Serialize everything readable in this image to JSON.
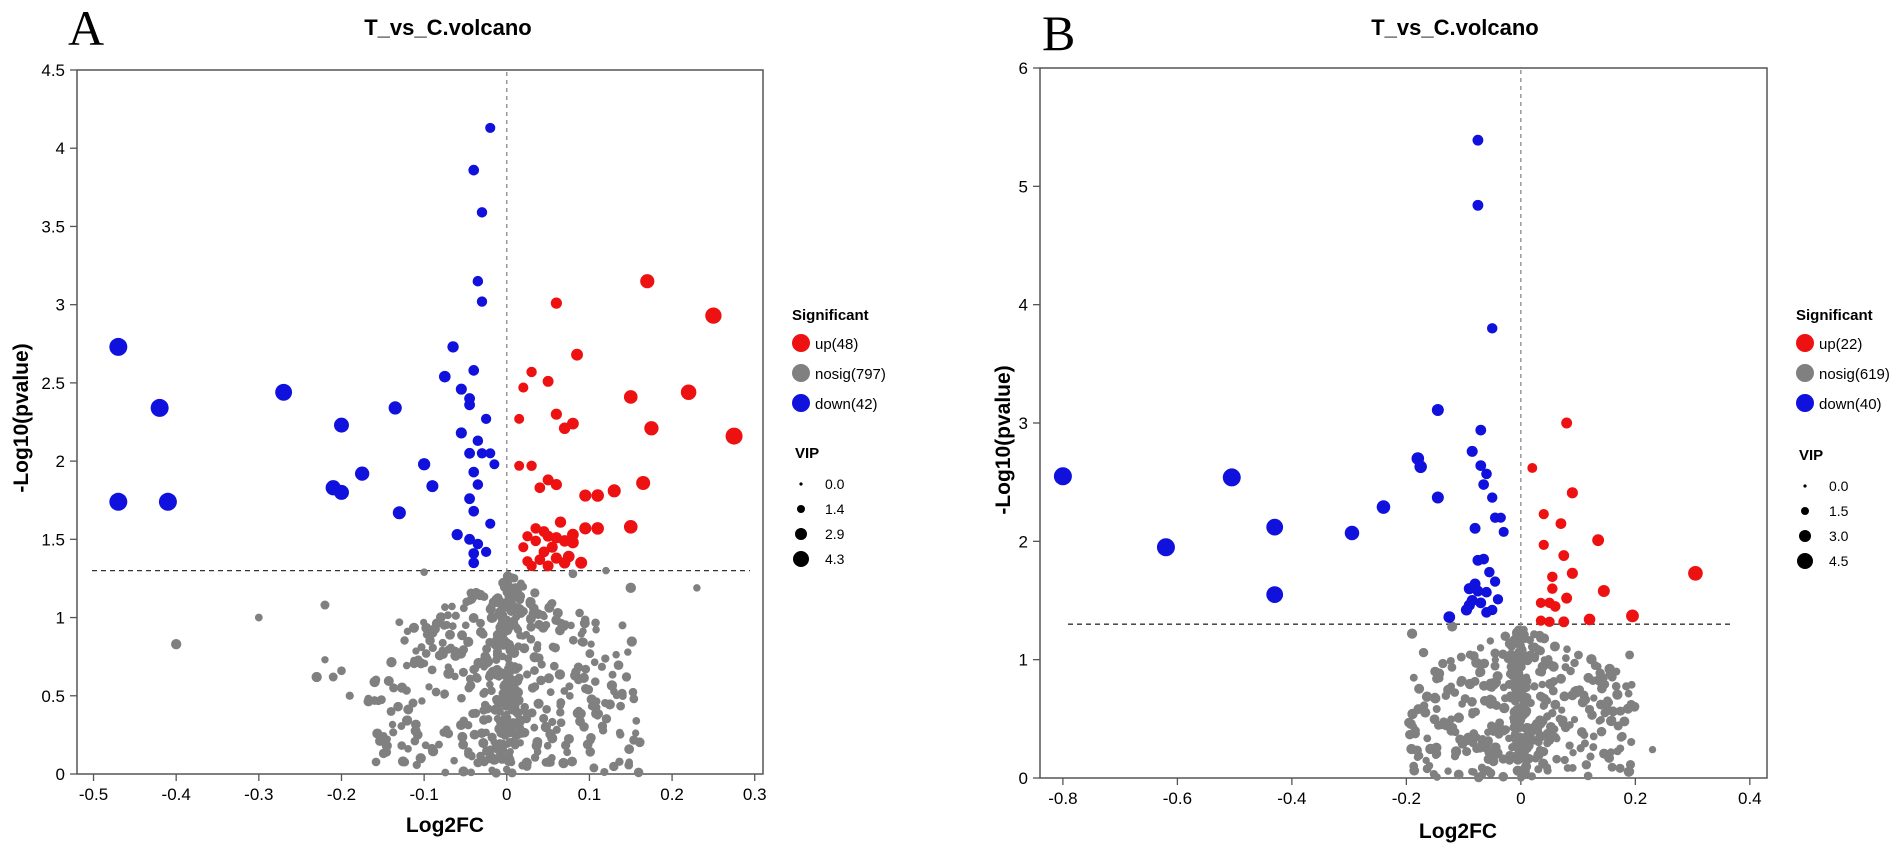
{
  "colors": {
    "up": "#ee1111",
    "nosig": "#808080",
    "down": "#1111dd",
    "axis": "#555555"
  },
  "chart_data": [
    {
      "type": "scatter",
      "panel_label": "A",
      "title": "T_vs_C.volcano",
      "xlabel": "Log2FC",
      "ylabel": "-Log10(pvalue)",
      "xlim": [
        -0.52,
        0.31
      ],
      "ylim": [
        0,
        4.5
      ],
      "xticks": [
        "-0.5",
        "-0.4",
        "-0.3",
        "-0.2",
        "-0.1",
        "0",
        "0.1",
        "0.2",
        "0.3"
      ],
      "xtick_values": [
        -0.5,
        -0.4,
        -0.3,
        -0.2,
        -0.1,
        0,
        0.1,
        0.2,
        0.3
      ],
      "yticks": [
        "0",
        "0.5",
        "1",
        "1.5",
        "2",
        "2.5",
        "3",
        "3.5",
        "4",
        "4.5"
      ],
      "ytick_values": [
        0,
        0.5,
        1,
        1.5,
        2,
        2.5,
        3,
        3.5,
        4,
        4.5
      ],
      "threshold_y": 1.3,
      "threshold_x": 0,
      "legend": {
        "title": "Significant",
        "items": [
          {
            "key": "up",
            "label": "up(48)"
          },
          {
            "key": "nosig",
            "label": "nosig(797)"
          },
          {
            "key": "down",
            "label": "down(42)"
          }
        ],
        "vip_title": "VIP",
        "vip_labels": [
          "0.0",
          "1.4",
          "2.9",
          "4.3"
        ],
        "vip_values": [
          0,
          1.4,
          2.9,
          4.3
        ]
      },
      "series": {
        "up": [
          [
            0.25,
            2.93
          ],
          [
            0.275,
            2.16
          ],
          [
            0.17,
            3.15
          ],
          [
            0.22,
            2.44
          ],
          [
            0.15,
            2.41
          ],
          [
            0.175,
            2.21
          ],
          [
            0.06,
            3.01
          ],
          [
            0.085,
            2.68
          ],
          [
            0.07,
            2.21
          ],
          [
            0.08,
            2.24
          ],
          [
            0.03,
            2.57
          ],
          [
            0.05,
            2.51
          ],
          [
            0.02,
            2.47
          ],
          [
            0.06,
            2.3
          ],
          [
            0.015,
            2.27
          ],
          [
            0.03,
            1.97
          ],
          [
            0.05,
            1.88
          ],
          [
            0.06,
            1.85
          ],
          [
            0.04,
            1.83
          ],
          [
            0.165,
            1.86
          ],
          [
            0.13,
            1.81
          ],
          [
            0.095,
            1.78
          ],
          [
            0.11,
            1.78
          ],
          [
            0.015,
            1.97
          ],
          [
            0.025,
            1.52
          ],
          [
            0.035,
            1.57
          ],
          [
            0.05,
            1.52
          ],
          [
            0.06,
            1.51
          ],
          [
            0.07,
            1.49
          ],
          [
            0.08,
            1.48
          ],
          [
            0.055,
            1.45
          ],
          [
            0.045,
            1.42
          ],
          [
            0.04,
            1.37
          ],
          [
            0.06,
            1.38
          ],
          [
            0.075,
            1.39
          ],
          [
            0.09,
            1.35
          ],
          [
            0.03,
            1.33
          ],
          [
            0.02,
            1.45
          ],
          [
            0.095,
            1.57
          ],
          [
            0.11,
            1.57
          ],
          [
            0.15,
            1.58
          ],
          [
            0.065,
            1.61
          ],
          [
            0.035,
            1.49
          ],
          [
            0.025,
            1.36
          ],
          [
            0.08,
            1.53
          ],
          [
            0.045,
            1.55
          ],
          [
            0.05,
            1.33
          ],
          [
            0.07,
            1.35
          ]
        ],
        "down": [
          [
            -0.47,
            2.73
          ],
          [
            -0.47,
            1.74
          ],
          [
            -0.42,
            2.34
          ],
          [
            -0.41,
            1.74
          ],
          [
            -0.27,
            2.44
          ],
          [
            -0.2,
            2.23
          ],
          [
            -0.2,
            1.8
          ],
          [
            -0.21,
            1.83
          ],
          [
            -0.175,
            1.92
          ],
          [
            -0.135,
            2.34
          ],
          [
            -0.13,
            1.67
          ],
          [
            -0.1,
            1.98
          ],
          [
            -0.09,
            1.84
          ],
          [
            -0.075,
            2.54
          ],
          [
            -0.065,
            2.73
          ],
          [
            -0.055,
            2.46
          ],
          [
            -0.04,
            2.58
          ],
          [
            -0.045,
            2.36
          ],
          [
            -0.035,
            2.13
          ],
          [
            -0.03,
            2.05
          ],
          [
            -0.02,
            2.05
          ],
          [
            -0.015,
            1.98
          ],
          [
            -0.045,
            2.05
          ],
          [
            -0.035,
            1.85
          ],
          [
            -0.045,
            1.76
          ],
          [
            -0.04,
            1.93
          ],
          [
            -0.06,
            1.53
          ],
          [
            -0.045,
            1.5
          ],
          [
            -0.035,
            1.47
          ],
          [
            -0.04,
            1.41
          ],
          [
            -0.04,
            1.35
          ],
          [
            -0.025,
            1.42
          ],
          [
            -0.02,
            1.6
          ],
          [
            -0.02,
            4.13
          ],
          [
            -0.04,
            3.86
          ],
          [
            -0.03,
            3.59
          ],
          [
            -0.035,
            3.15
          ],
          [
            -0.03,
            3.02
          ],
          [
            -0.045,
            2.4
          ],
          [
            -0.025,
            2.27
          ],
          [
            -0.055,
            2.18
          ],
          [
            -0.04,
            1.68
          ]
        ]
      }
    },
    {
      "type": "scatter",
      "panel_label": "B",
      "title": "T_vs_C.volcano",
      "xlabel": "Log2FC",
      "ylabel": "-Log10(pvalue)",
      "xlim": [
        -0.84,
        0.43
      ],
      "ylim": [
        0,
        6
      ],
      "xticks": [
        "-0.8",
        "-0.6",
        "-0.4",
        "-0.2",
        "0",
        "0.2",
        "0.4"
      ],
      "xtick_values": [
        -0.8,
        -0.6,
        -0.4,
        -0.2,
        0,
        0.2,
        0.4
      ],
      "yticks": [
        "0",
        "1",
        "2",
        "3",
        "4",
        "5",
        "6"
      ],
      "ytick_values": [
        0,
        1,
        2,
        3,
        4,
        5,
        6
      ],
      "threshold_y": 1.3,
      "threshold_x": 0,
      "legend": {
        "title": "Significant",
        "items": [
          {
            "key": "up",
            "label": "up(22)"
          },
          {
            "key": "nosig",
            "label": "nosig(619)"
          },
          {
            "key": "down",
            "label": "down(40)"
          }
        ],
        "vip_title": "VIP",
        "vip_labels": [
          "0.0",
          "1.5",
          "3.0",
          "4.5"
        ],
        "vip_values": [
          0,
          1.5,
          3.0,
          4.5
        ]
      },
      "series": {
        "up": [
          [
            0.305,
            1.73
          ],
          [
            0.195,
            1.37
          ],
          [
            0.145,
            1.58
          ],
          [
            0.135,
            2.01
          ],
          [
            0.09,
            2.41
          ],
          [
            0.08,
            3.0
          ],
          [
            0.07,
            2.15
          ],
          [
            0.075,
            1.88
          ],
          [
            0.09,
            1.73
          ],
          [
            0.055,
            1.7
          ],
          [
            0.04,
            1.97
          ],
          [
            0.04,
            2.23
          ],
          [
            0.05,
            1.48
          ],
          [
            0.035,
            1.48
          ],
          [
            0.06,
            1.45
          ],
          [
            0.12,
            1.34
          ],
          [
            0.075,
            1.32
          ],
          [
            0.05,
            1.32
          ],
          [
            0.035,
            1.33
          ],
          [
            0.055,
            1.6
          ],
          [
            0.02,
            2.62
          ],
          [
            0.08,
            1.52
          ]
        ],
        "up_large_note": "",
        "down": [
          [
            -0.8,
            2.55
          ],
          [
            -0.62,
            1.95
          ],
          [
            -0.505,
            2.54
          ],
          [
            -0.43,
            2.12
          ],
          [
            -0.43,
            1.55
          ],
          [
            -0.295,
            2.07
          ],
          [
            -0.24,
            2.29
          ],
          [
            -0.18,
            2.7
          ],
          [
            -0.175,
            2.63
          ],
          [
            -0.145,
            3.11
          ],
          [
            -0.145,
            2.37
          ],
          [
            -0.085,
            2.76
          ],
          [
            -0.07,
            2.94
          ],
          [
            -0.07,
            2.64
          ],
          [
            -0.065,
            2.48
          ],
          [
            -0.06,
            2.57
          ],
          [
            -0.05,
            2.37
          ],
          [
            -0.045,
            2.2
          ],
          [
            -0.035,
            2.2
          ],
          [
            -0.03,
            2.08
          ],
          [
            -0.08,
            2.11
          ],
          [
            -0.075,
            1.84
          ],
          [
            -0.055,
            1.74
          ],
          [
            -0.08,
            1.64
          ],
          [
            -0.075,
            1.58
          ],
          [
            -0.06,
            1.57
          ],
          [
            -0.07,
            1.48
          ],
          [
            -0.05,
            1.42
          ],
          [
            -0.09,
            1.46
          ],
          [
            -0.095,
            1.42
          ],
          [
            -0.125,
            1.36
          ],
          [
            -0.045,
            1.66
          ],
          [
            -0.075,
            5.39
          ],
          [
            -0.075,
            4.84
          ],
          [
            -0.05,
            3.8
          ],
          [
            -0.09,
            1.6
          ],
          [
            -0.04,
            1.51
          ],
          [
            -0.06,
            1.4
          ],
          [
            -0.085,
            1.5
          ],
          [
            -0.065,
            1.85
          ]
        ]
      }
    }
  ]
}
